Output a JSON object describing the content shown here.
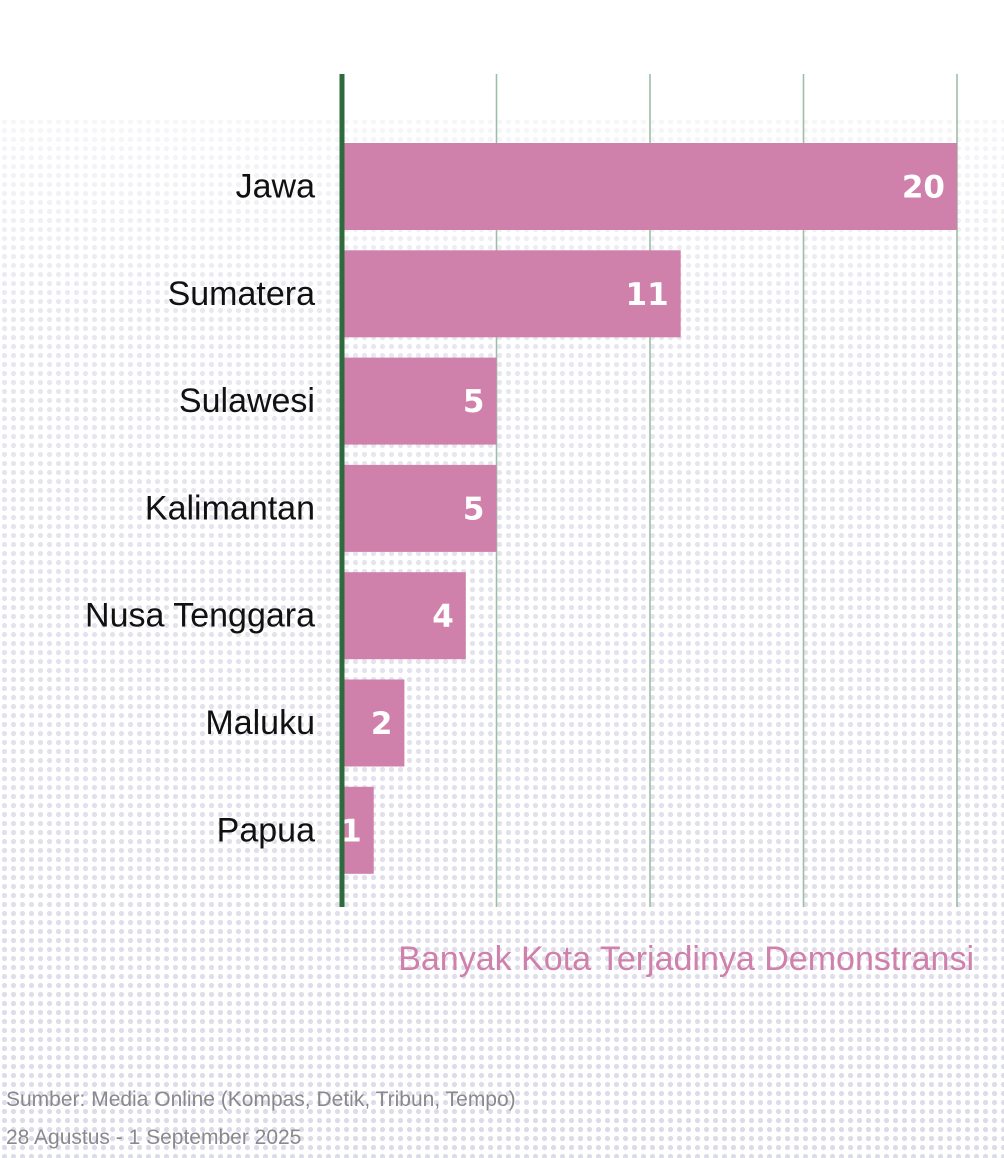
{
  "colors": {
    "bar": "#cf80ab",
    "axis": "#2e6b3c",
    "grid": "#9cbea6",
    "value_text": "#ffffff",
    "xlabel": "#cf80ab",
    "source_text": "#8a8a8e",
    "texture": "#dcdbe8"
  },
  "chart_data": {
    "type": "bar",
    "orientation": "horizontal",
    "categories": [
      "Jawa",
      "Sumatera",
      "Sulawesi",
      "Kalimantan",
      "Nusa Tenggara",
      "Maluku",
      "Papua"
    ],
    "values": [
      20,
      11,
      5,
      5,
      4,
      2,
      1
    ],
    "xlabel": "Banyak Kota Terjadinya Demonstransi",
    "xlim": [
      0,
      20
    ],
    "gridlines_at": [
      0,
      5,
      10,
      15,
      20
    ],
    "grid": true,
    "legend": "none"
  },
  "footer": {
    "source": "Sumber: Media Online (Kompas, Detik, Tribun, Tempo)",
    "date_range": "28 Agustus - 1 September 2025"
  }
}
